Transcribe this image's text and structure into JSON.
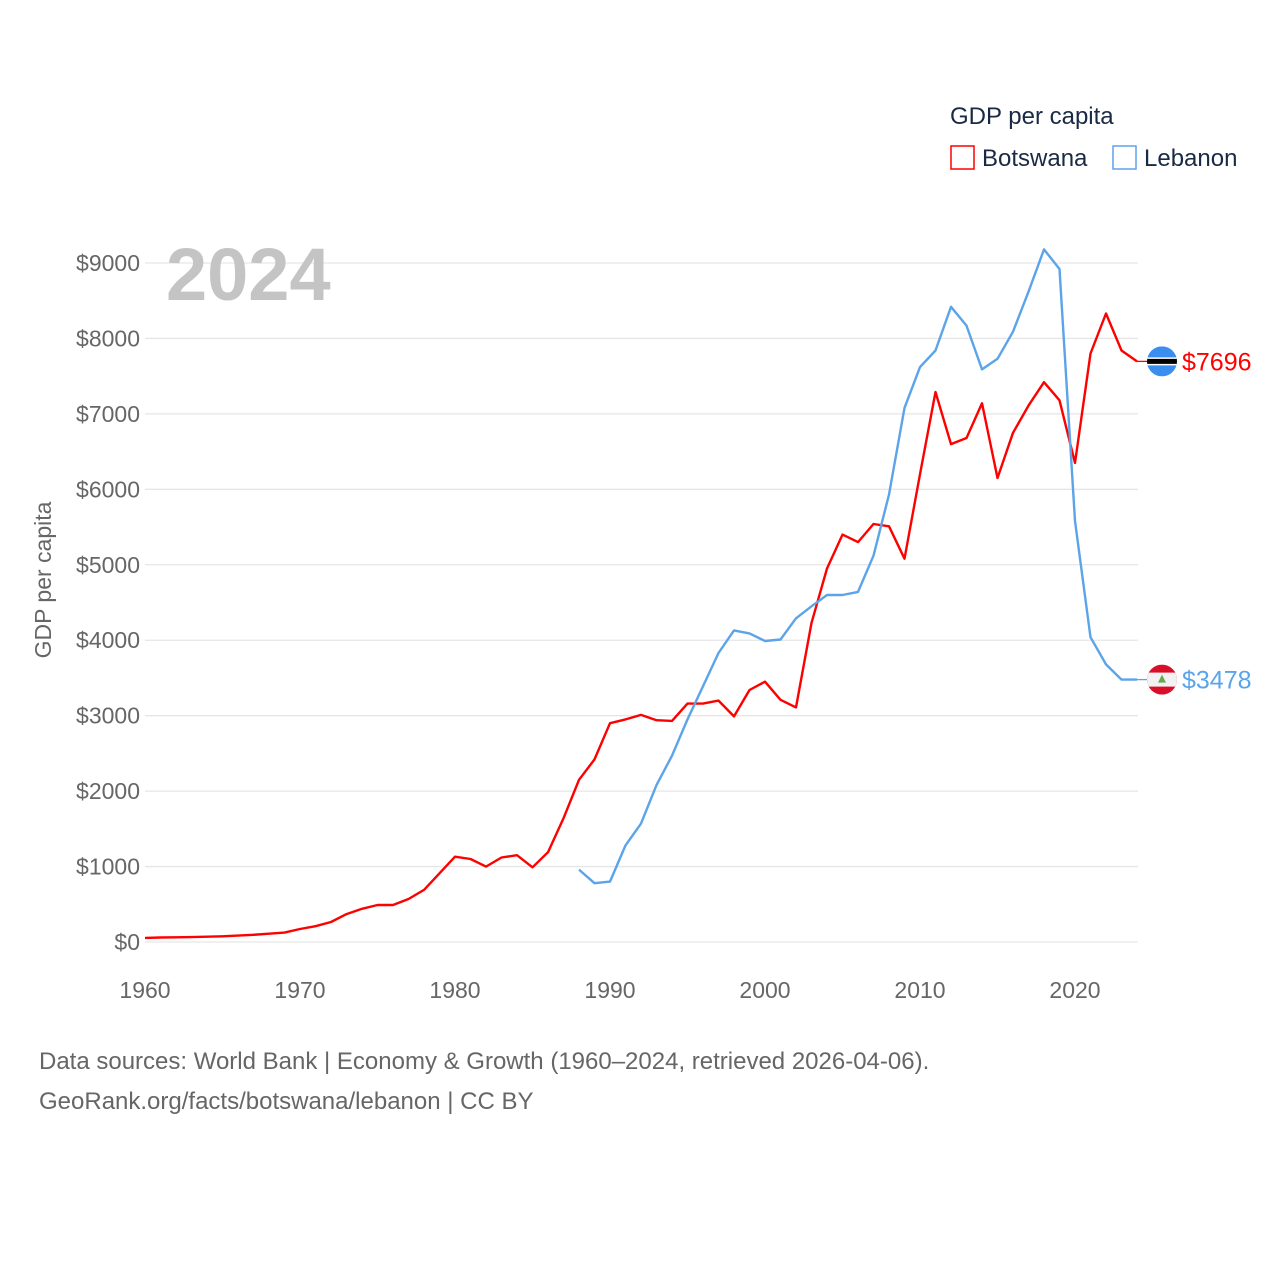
{
  "chart_data": {
    "type": "line",
    "title": "GDP per capita",
    "ylabel": "GDP per capita",
    "xlabel": "",
    "year_label": "2024",
    "xlim": [
      1960,
      2024
    ],
    "ylim": [
      0,
      9000
    ],
    "grid": true,
    "legend_placement": "top-right",
    "x_ticks": [
      "1960",
      "1970",
      "1980",
      "1990",
      "2000",
      "2010",
      "2020"
    ],
    "y_ticks": [
      "$0",
      "$1000",
      "$2000",
      "$3000",
      "$4000",
      "$5000",
      "$6000",
      "$7000",
      "$8000",
      "$9000"
    ],
    "series": [
      {
        "name": "Botswana",
        "color": "#ff0000",
        "end_label": "$7696",
        "flag": "botswana-flag",
        "start_year": 1960,
        "values": [
          55,
          60,
          62,
          65,
          70,
          75,
          85,
          95,
          110,
          125,
          172,
          210,
          265,
          370,
          440,
          490,
          490,
          570,
          690,
          910,
          1130,
          1100,
          1000,
          1120,
          1150,
          990,
          1190,
          1640,
          2150,
          2420,
          2900,
          2950,
          3010,
          2940,
          2930,
          3160,
          3160,
          3200,
          2990,
          3340,
          3450,
          3210,
          3110,
          4230,
          4950,
          5400,
          5300,
          5540,
          5510,
          5080,
          6200,
          7290,
          6600,
          6680,
          7140,
          6150,
          6750,
          7110,
          7420,
          7180,
          6350,
          7800,
          8330,
          7840,
          7696
        ]
      },
      {
        "name": "Lebanon",
        "color": "#5ba4ea",
        "end_label": "$3478",
        "flag": "lebanon-flag",
        "start_year": 1988,
        "values": [
          960,
          780,
          800,
          1280,
          1570,
          2080,
          2470,
          2950,
          3390,
          3830,
          4130,
          4090,
          3990,
          4010,
          4290,
          4450,
          4600,
          4600,
          4640,
          5120,
          5930,
          7080,
          7620,
          7840,
          8420,
          8170,
          7590,
          7730,
          8090,
          8620,
          9180,
          8920,
          5580,
          4040,
          3680,
          3478,
          3478
        ]
      }
    ]
  },
  "footer": {
    "line1": "Data sources: World Bank | Economy & Growth (1960–2024, retrieved 2026-04-06).",
    "line2": "GeoRank.org/facts/botswana/lebanon | CC BY"
  }
}
